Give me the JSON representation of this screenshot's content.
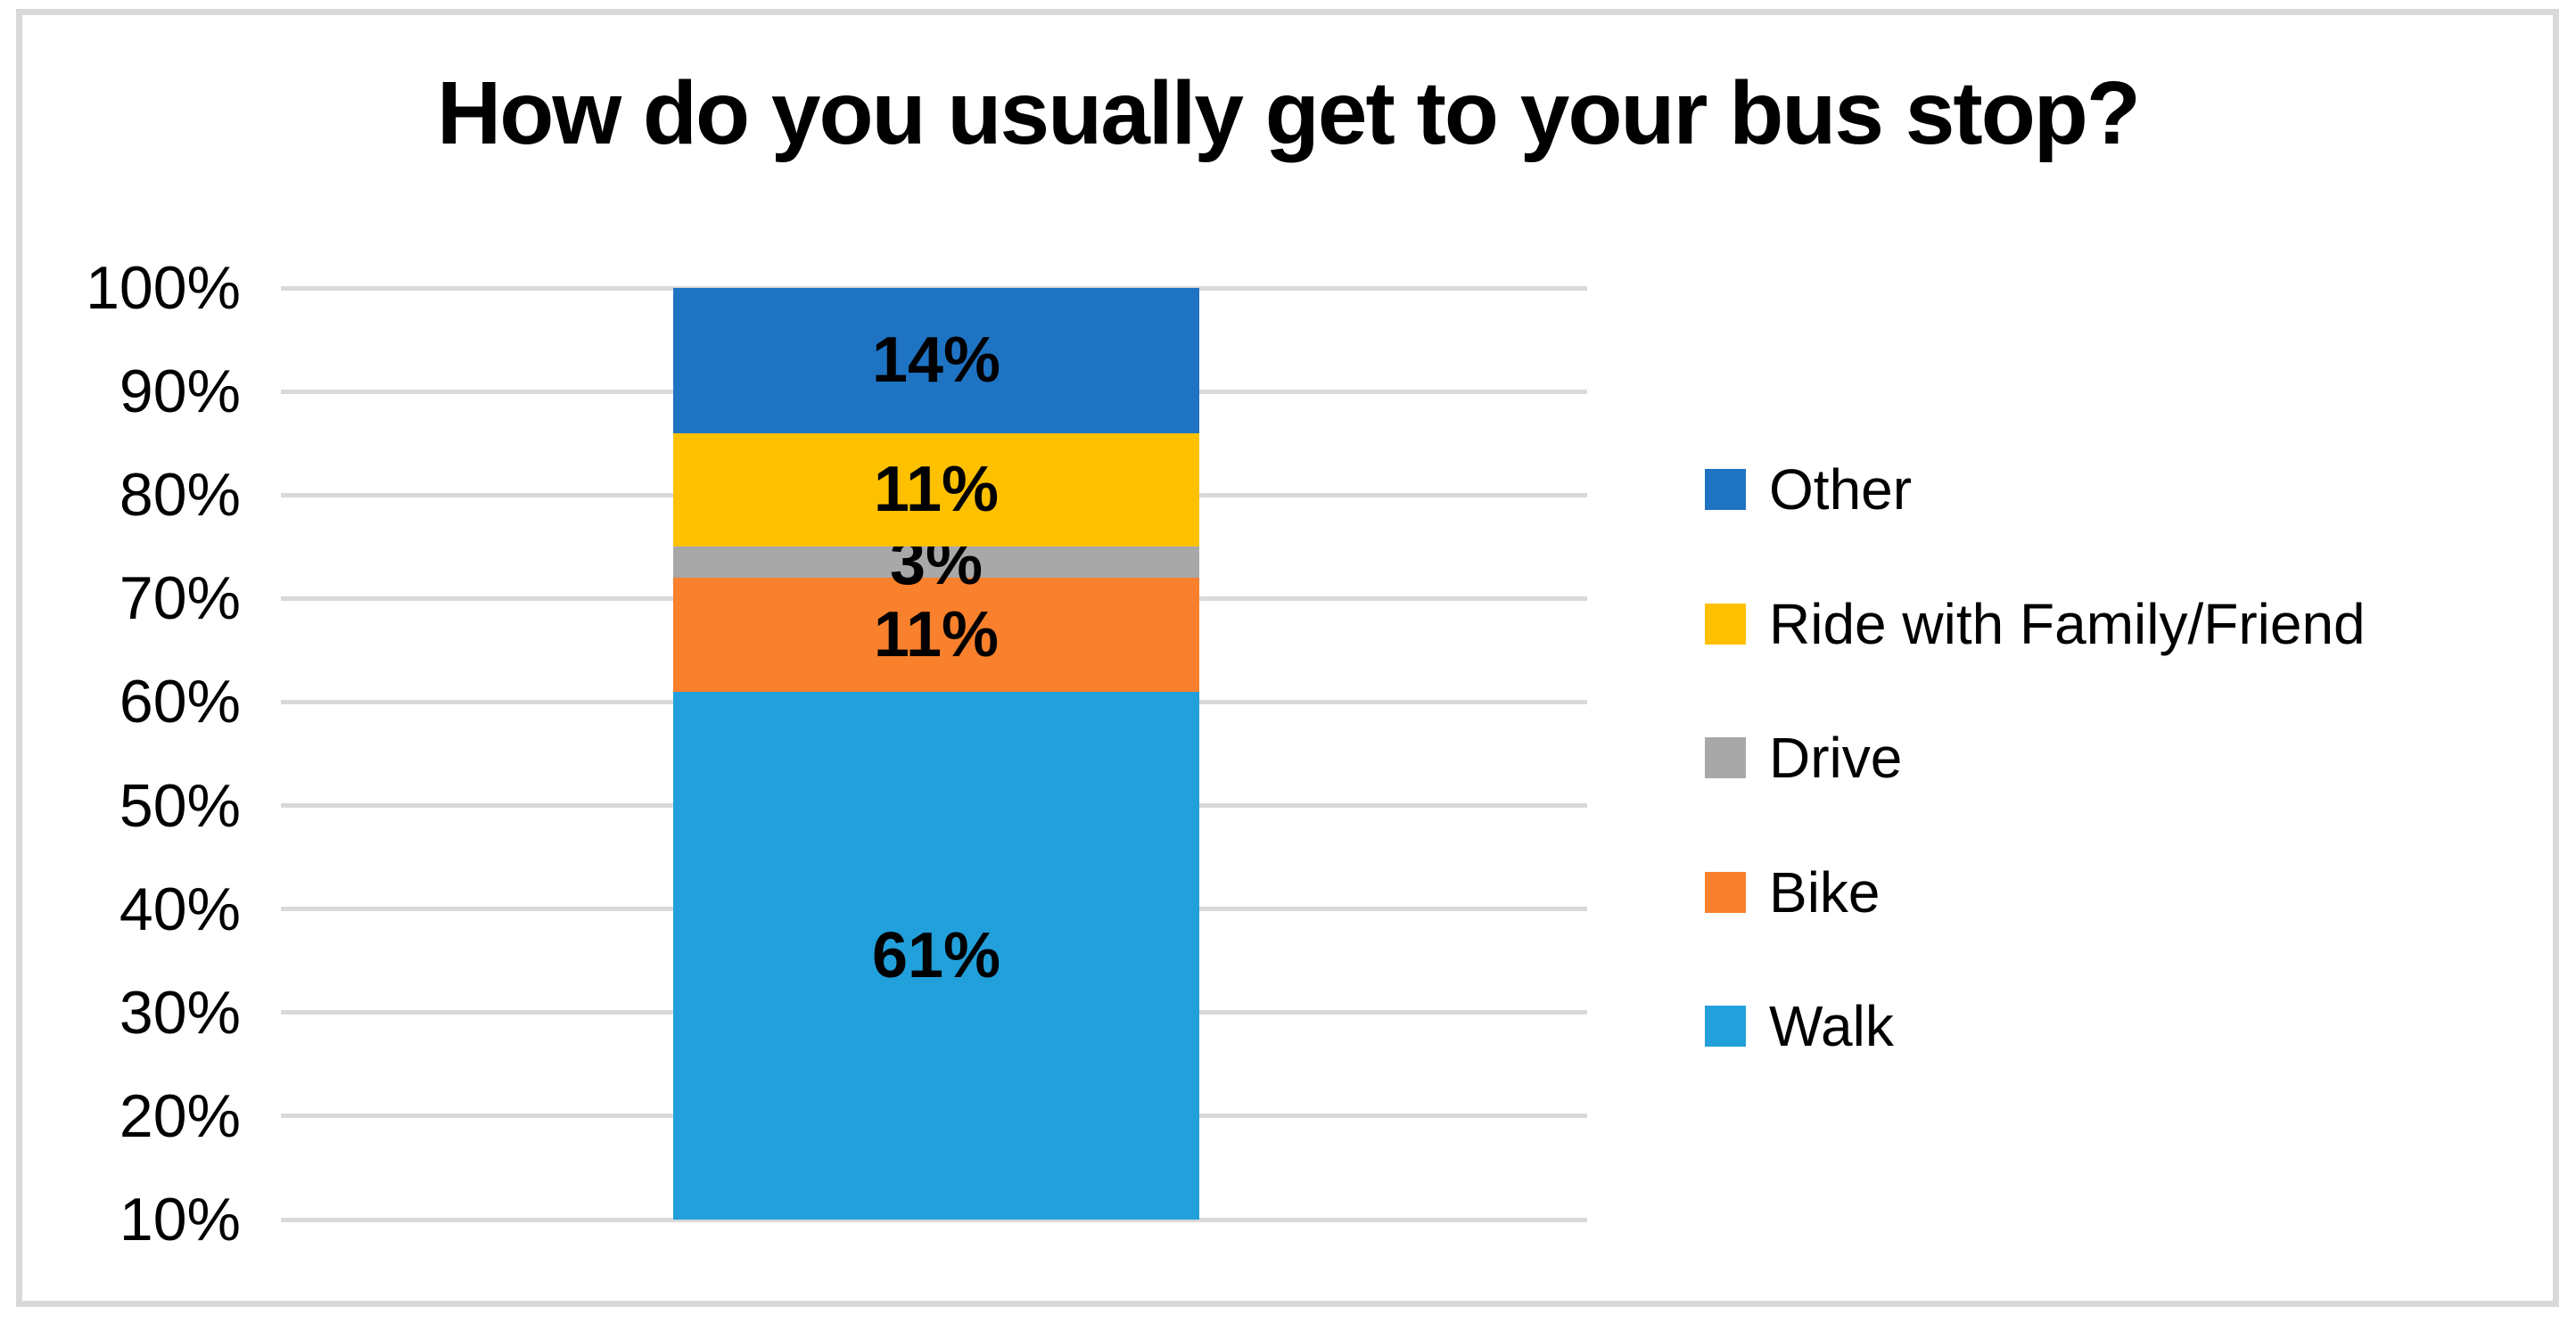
{
  "chart_data": {
    "type": "bar",
    "stacked": true,
    "title": "How do you usually get to your bus stop?",
    "categories": [
      ""
    ],
    "series": [
      {
        "name": "Walk",
        "values": [
          61
        ],
        "color": "#22A0DB",
        "data_label": "61%"
      },
      {
        "name": "Bike",
        "values": [
          11
        ],
        "color": "#F9802C",
        "data_label": "11%"
      },
      {
        "name": "Drive",
        "values": [
          3
        ],
        "color": "#A8A8A8",
        "data_label": "3%"
      },
      {
        "name": "Ride with Family/Friend",
        "values": [
          11
        ],
        "color": "#FFC000",
        "data_label": "11%"
      },
      {
        "name": "Other",
        "values": [
          14
        ],
        "color": "#1E73C3",
        "data_label": "14%"
      }
    ],
    "xlabel": "",
    "ylabel": "",
    "ylim": [
      10,
      100
    ],
    "yticks": [
      "10%",
      "20%",
      "30%",
      "40%",
      "50%",
      "60%",
      "70%",
      "80%",
      "90%",
      "100%"
    ],
    "grid": true,
    "gridline_color": "#D9D9D9",
    "legend_position": "right",
    "legend_order": [
      "Other",
      "Ride with Family/Friend",
      "Drive",
      "Bike",
      "Walk"
    ]
  }
}
